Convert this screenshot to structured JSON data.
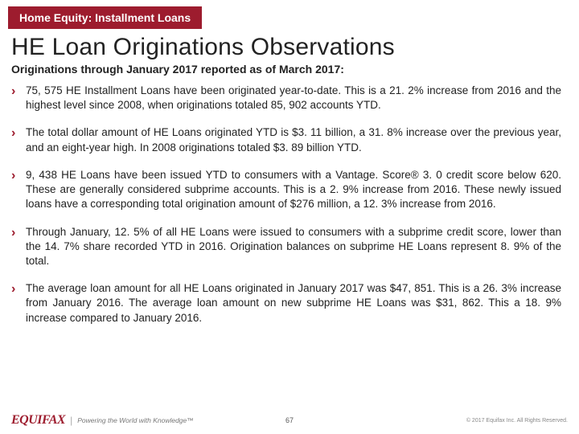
{
  "tab_label": "Home Equity: Installment Loans",
  "title": "HE Loan Originations Observations",
  "subtitle": "Originations through January 2017 reported as of March 2017:",
  "bullets": [
    "75, 575 HE Installment Loans have been originated year-to-date. This is a 21. 2% increase from 2016 and the highest level since 2008, when originations totaled 85, 902 accounts YTD.",
    "The total dollar amount of HE Loans originated YTD is $3. 11 billion, a 31. 8% increase over the previous year, and an eight-year high. In 2008 originations totaled $3. 89 billion YTD.",
    "9, 438 HE Loans have been issued YTD to consumers with a Vantage. Score® 3. 0 credit score below 620. These are generally considered subprime accounts. This is a 2. 9% increase from 2016. These newly issued loans have a corresponding total origination amount of $276 million, a 12. 3% increase from 2016.",
    "Through January, 12. 5% of all HE Loans were issued to consumers with a subprime credit score, lower than the 14. 7% share recorded YTD in 2016. Origination balances on subprime HE Loans represent 8. 9% of the total.",
    "The average loan amount for all HE Loans originated in January 2017 was $47, 851. This is a 26. 3% increase from January 2016. The average loan amount on new subprime HE Loans was $31, 862. This a 18. 9% increase compared to January 2016."
  ],
  "footer": {
    "logo_text": "EQUIFAX",
    "tagline": "Powering the World with Knowledge™",
    "page_number": "67",
    "copyright": "© 2017 Equifax Inc. All Rights Reserved."
  },
  "colors": {
    "brand": "#9d1c2e",
    "text": "#222222",
    "bg": "#ffffff"
  }
}
